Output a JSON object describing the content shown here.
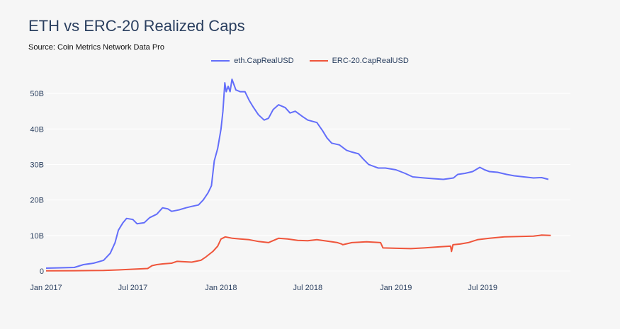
{
  "title": "ETH vs ERC-20 Realized Caps",
  "subtitle": "Source: Coin Metrics Network Data Pro",
  "colors": {
    "eth": "#636efa",
    "erc20": "#ef553b",
    "grid": "#ffffff",
    "background": "#f6f6f6"
  },
  "chart_data": {
    "type": "line",
    "title": "ETH vs ERC-20 Realized Caps",
    "xlabel": "",
    "ylabel": "",
    "ylim": [
      0,
      54
    ],
    "xlim": [
      "2017-01-01",
      "2019-12-31"
    ],
    "x_ticks": [
      "Jan 2017",
      "Jul 2017",
      "Jan 2018",
      "Jul 2018",
      "Jan 2019",
      "Jul 2019"
    ],
    "x_tick_dates": [
      "2017-01-01",
      "2017-07-01",
      "2018-01-01",
      "2018-07-01",
      "2019-01-01",
      "2019-07-01"
    ],
    "y_ticks": [
      "0",
      "10B",
      "20B",
      "30B",
      "40B",
      "50B"
    ],
    "y_tick_values": [
      0,
      10,
      20,
      30,
      40,
      50
    ],
    "unit": "billions USD",
    "grid": true,
    "legend_position": "top-center",
    "series": [
      {
        "name": "eth.CapRealUSD",
        "color": "#636efa",
        "points": [
          [
            "2017-01-01",
            0.8
          ],
          [
            "2017-02-01",
            0.9
          ],
          [
            "2017-03-01",
            1.0
          ],
          [
            "2017-03-20",
            1.8
          ],
          [
            "2017-04-10",
            2.2
          ],
          [
            "2017-05-01",
            3.0
          ],
          [
            "2017-05-15",
            5.0
          ],
          [
            "2017-05-25",
            8.0
          ],
          [
            "2017-06-01",
            11.5
          ],
          [
            "2017-06-10",
            13.5
          ],
          [
            "2017-06-18",
            14.8
          ],
          [
            "2017-07-01",
            14.5
          ],
          [
            "2017-07-10",
            13.3
          ],
          [
            "2017-07-25",
            13.6
          ],
          [
            "2017-08-05",
            15.0
          ],
          [
            "2017-08-20",
            16.0
          ],
          [
            "2017-09-01",
            17.8
          ],
          [
            "2017-09-12",
            17.5
          ],
          [
            "2017-09-20",
            16.8
          ],
          [
            "2017-10-05",
            17.2
          ],
          [
            "2017-10-20",
            17.8
          ],
          [
            "2017-11-01",
            18.2
          ],
          [
            "2017-11-15",
            18.6
          ],
          [
            "2017-11-25",
            20.0
          ],
          [
            "2017-12-05",
            22.0
          ],
          [
            "2017-12-12",
            24.0
          ],
          [
            "2017-12-18",
            31.0
          ],
          [
            "2017-12-25",
            34.5
          ],
          [
            "2018-01-01",
            40.0
          ],
          [
            "2018-01-05",
            45.0
          ],
          [
            "2018-01-09",
            53.0
          ],
          [
            "2018-01-12",
            50.5
          ],
          [
            "2018-01-16",
            52.0
          ],
          [
            "2018-01-20",
            50.5
          ],
          [
            "2018-01-24",
            54.0
          ],
          [
            "2018-02-01",
            51.0
          ],
          [
            "2018-02-10",
            50.5
          ],
          [
            "2018-02-20",
            50.5
          ],
          [
            "2018-03-01",
            48.0
          ],
          [
            "2018-03-10",
            46.0
          ],
          [
            "2018-03-20",
            44.0
          ],
          [
            "2018-04-01",
            42.5
          ],
          [
            "2018-04-10",
            43.0
          ],
          [
            "2018-04-20",
            45.5
          ],
          [
            "2018-05-01",
            46.8
          ],
          [
            "2018-05-15",
            46.0
          ],
          [
            "2018-05-25",
            44.5
          ],
          [
            "2018-06-05",
            45.0
          ],
          [
            "2018-06-20",
            43.5
          ],
          [
            "2018-07-01",
            42.5
          ],
          [
            "2018-07-20",
            41.8
          ],
          [
            "2018-08-01",
            39.5
          ],
          [
            "2018-08-10",
            37.5
          ],
          [
            "2018-08-20",
            36.0
          ],
          [
            "2018-09-05",
            35.5
          ],
          [
            "2018-09-20",
            34.0
          ],
          [
            "2018-10-01",
            33.5
          ],
          [
            "2018-10-15",
            33.0
          ],
          [
            "2018-10-25",
            31.5
          ],
          [
            "2018-11-05",
            30.0
          ],
          [
            "2018-11-15",
            29.5
          ],
          [
            "2018-11-25",
            29.0
          ],
          [
            "2018-12-10",
            29.0
          ],
          [
            "2019-01-01",
            28.5
          ],
          [
            "2019-01-20",
            27.5
          ],
          [
            "2019-02-05",
            26.5
          ],
          [
            "2019-03-01",
            26.2
          ],
          [
            "2019-03-20",
            26.0
          ],
          [
            "2019-04-10",
            25.8
          ],
          [
            "2019-05-01",
            26.2
          ],
          [
            "2019-05-10",
            27.2
          ],
          [
            "2019-05-25",
            27.5
          ],
          [
            "2019-06-10",
            28.0
          ],
          [
            "2019-06-25",
            29.2
          ],
          [
            "2019-07-05",
            28.5
          ],
          [
            "2019-07-15",
            28.0
          ],
          [
            "2019-08-01",
            27.8
          ],
          [
            "2019-08-20",
            27.2
          ],
          [
            "2019-09-05",
            26.8
          ],
          [
            "2019-09-25",
            26.5
          ],
          [
            "2019-10-15",
            26.2
          ],
          [
            "2019-11-01",
            26.3
          ],
          [
            "2019-11-15",
            25.8
          ]
        ]
      },
      {
        "name": "ERC-20.CapRealUSD",
        "color": "#ef553b",
        "points": [
          [
            "2017-01-01",
            0.05
          ],
          [
            "2017-03-01",
            0.08
          ],
          [
            "2017-05-01",
            0.15
          ],
          [
            "2017-06-01",
            0.3
          ],
          [
            "2017-07-01",
            0.5
          ],
          [
            "2017-08-01",
            0.7
          ],
          [
            "2017-08-10",
            1.5
          ],
          [
            "2017-08-20",
            1.8
          ],
          [
            "2017-09-01",
            2.0
          ],
          [
            "2017-09-20",
            2.2
          ],
          [
            "2017-10-01",
            2.7
          ],
          [
            "2017-11-01",
            2.5
          ],
          [
            "2017-11-20",
            3.0
          ],
          [
            "2017-12-01",
            4.0
          ],
          [
            "2017-12-15",
            5.5
          ],
          [
            "2017-12-25",
            7.0
          ],
          [
            "2018-01-01",
            9.0
          ],
          [
            "2018-01-10",
            9.6
          ],
          [
            "2018-01-25",
            9.2
          ],
          [
            "2018-02-10",
            9.0
          ],
          [
            "2018-03-01",
            8.8
          ],
          [
            "2018-03-20",
            8.3
          ],
          [
            "2018-04-10",
            8.0
          ],
          [
            "2018-05-01",
            9.2
          ],
          [
            "2018-05-20",
            9.0
          ],
          [
            "2018-06-10",
            8.6
          ],
          [
            "2018-07-01",
            8.5
          ],
          [
            "2018-07-20",
            8.8
          ],
          [
            "2018-08-10",
            8.4
          ],
          [
            "2018-09-01",
            8.0
          ],
          [
            "2018-09-10",
            7.6
          ],
          [
            "2018-09-12",
            7.4
          ],
          [
            "2018-10-01",
            8.0
          ],
          [
            "2018-11-01",
            8.2
          ],
          [
            "2018-11-30",
            8.0
          ],
          [
            "2018-12-05",
            6.5
          ],
          [
            "2019-01-01",
            6.4
          ],
          [
            "2019-02-01",
            6.3
          ],
          [
            "2019-03-01",
            6.5
          ],
          [
            "2019-04-01",
            6.8
          ],
          [
            "2019-04-25",
            7.0
          ],
          [
            "2019-04-27",
            5.5
          ],
          [
            "2019-04-30",
            7.4
          ],
          [
            "2019-05-15",
            7.6
          ],
          [
            "2019-06-01",
            8.0
          ],
          [
            "2019-06-20",
            8.8
          ],
          [
            "2019-07-15",
            9.2
          ],
          [
            "2019-08-15",
            9.6
          ],
          [
            "2019-09-15",
            9.7
          ],
          [
            "2019-10-15",
            9.8
          ],
          [
            "2019-11-01",
            10.1
          ],
          [
            "2019-11-20",
            10.0
          ]
        ]
      }
    ]
  }
}
